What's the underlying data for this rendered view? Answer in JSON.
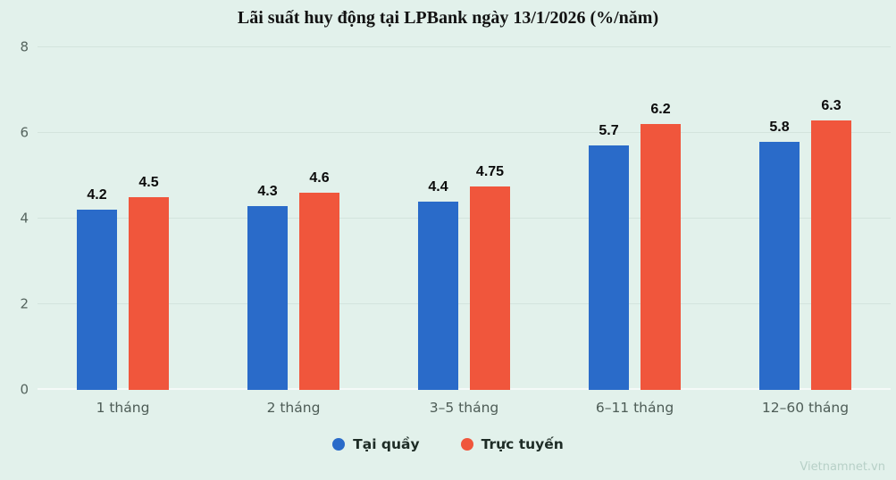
{
  "title": "Lãi suất huy động tại LPBank ngày 13/1/2026 (%/năm)",
  "watermark": "Vietnamnet.vn",
  "colors": {
    "background": "#e2f1eb",
    "blue_series": "#2a6bc9",
    "red_series": "#f0563c",
    "gridline": "#d3e4dd",
    "axis_text": "#55645e",
    "value_label": "#0b0b0b"
  },
  "chart_data": {
    "type": "bar",
    "title": "Lãi suất huy động tại LPBank ngày 13/1/2026 (%/năm)",
    "categories": [
      "1 tháng",
      "2 tháng",
      "3–5 tháng",
      "6–11 tháng",
      "12–60 tháng"
    ],
    "series": [
      {
        "name": "Tại quầy",
        "color": "#2a6bc9",
        "values": [
          4.2,
          4.3,
          4.4,
          5.7,
          5.8
        ]
      },
      {
        "name": "Trực tuyến",
        "color": "#f0563c",
        "values": [
          4.5,
          4.6,
          4.75,
          6.2,
          6.3
        ]
      }
    ],
    "xlabel": "",
    "ylabel": "",
    "ylim": [
      0,
      8
    ],
    "yticks": [
      0,
      2,
      4,
      6,
      8
    ],
    "grid": true,
    "legend_position": "bottom"
  },
  "legend": {
    "items": [
      {
        "label": "Tại quầy",
        "color": "#2a6bc9"
      },
      {
        "label": "Trực tuyến",
        "color": "#f0563c"
      }
    ]
  }
}
